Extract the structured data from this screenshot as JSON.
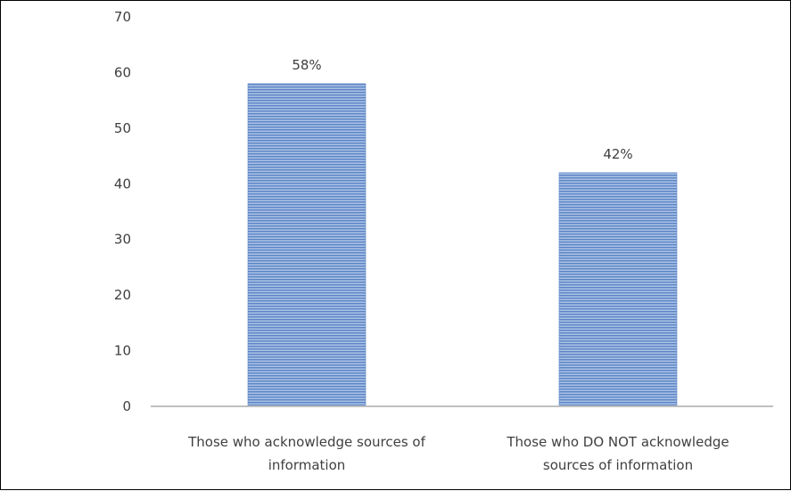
{
  "chart_data": {
    "type": "bar",
    "title": "",
    "xlabel": "",
    "ylabel": "",
    "ylim": [
      0,
      70
    ],
    "yticks": [
      0,
      10,
      20,
      30,
      40,
      50,
      60,
      70
    ],
    "grid": false,
    "legend": "none",
    "categories": [
      [
        "Those who acknowledge sources of",
        "information"
      ],
      [
        "Those who DO NOT acknowledge",
        "sources of information"
      ]
    ],
    "values": [
      58,
      42
    ],
    "data_labels": [
      "58%",
      "42%"
    ],
    "bar_color": "#5b84c4",
    "bar_stripe_color": "#a9c1e6",
    "axis_color": "#bfbfbf",
    "text_color": "#404040"
  }
}
